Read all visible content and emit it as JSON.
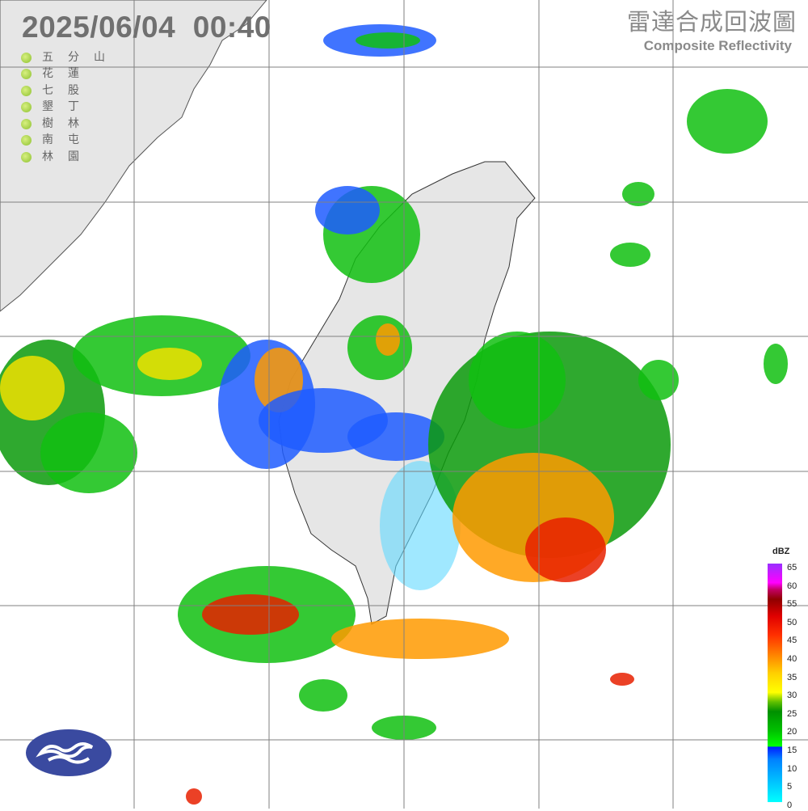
{
  "timestamp": "2025/06/04  00:40",
  "title_zh": "雷達合成回波圖",
  "title_en": "Composite Reflectivity",
  "stations": [
    "五分山",
    "花蓮",
    "七股",
    "墾丁",
    "樹林",
    "南屯",
    "林園"
  ],
  "station_status_color": "#9acd32",
  "legend": {
    "unit": "dBZ",
    "ticks": [
      "65",
      "60",
      "55",
      "50",
      "45",
      "40",
      "35",
      "30",
      "25",
      "20",
      "15",
      "10",
      "5",
      "0"
    ]
  },
  "logo": "central-weather-administration-logo",
  "colors": {
    "land": "#e6e6e6",
    "grid": "#808080",
    "logo": "#3a4aa0"
  }
}
